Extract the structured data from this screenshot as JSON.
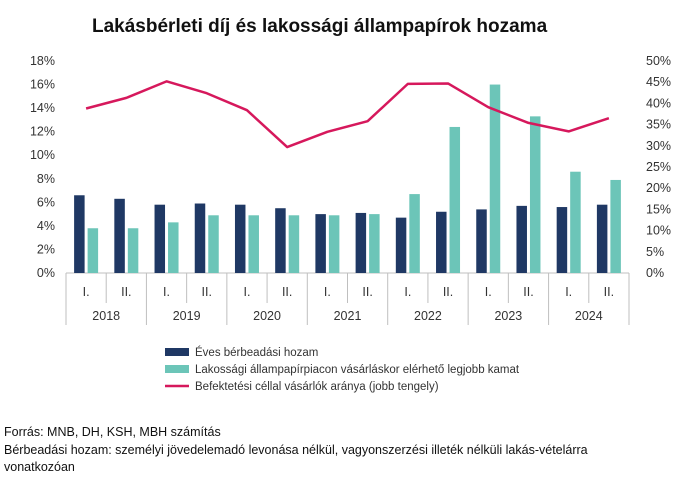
{
  "chart_data": {
    "type": "bar",
    "title": "Lakásbérleti díj és lakossági állampapírok hozama",
    "years": [
      "2018",
      "2019",
      "2020",
      "2021",
      "2022",
      "2023",
      "2024"
    ],
    "categories": [
      "I.",
      "II.",
      "I.",
      "II.",
      "I.",
      "II.",
      "I.",
      "II.",
      "I.",
      "II.",
      "I.",
      "II.",
      "I.",
      "II."
    ],
    "y_left": {
      "ticks": [
        "0%",
        "2%",
        "4%",
        "6%",
        "8%",
        "10%",
        "12%",
        "14%",
        "16%",
        "18%"
      ],
      "range": [
        0,
        18
      ]
    },
    "y_right": {
      "ticks": [
        "0%",
        "5%",
        "10%",
        "15%",
        "20%",
        "25%",
        "30%",
        "35%",
        "40%",
        "45%",
        "50%"
      ],
      "range": [
        0,
        50
      ]
    },
    "series": [
      {
        "name": "Éves bérbeadási hozam",
        "type": "bar",
        "axis": "left",
        "color": "#1f3864",
        "values": [
          6.6,
          6.3,
          5.8,
          5.9,
          5.8,
          5.5,
          5.0,
          5.1,
          4.7,
          5.2,
          5.4,
          5.7,
          5.6,
          5.8
        ]
      },
      {
        "name": "Lakossági állampapírpiacon vásárláskor elérhető legjobb kamat",
        "type": "bar",
        "axis": "left",
        "color": "#6cc5b8",
        "values": [
          3.8,
          3.8,
          4.3,
          4.9,
          4.9,
          4.9,
          4.9,
          5.0,
          6.7,
          12.4,
          16.0,
          13.3,
          8.6,
          7.9
        ]
      },
      {
        "name": "Befektetési céllal vásárlók aránya (jobb tengely)",
        "type": "line",
        "axis": "right",
        "color": "#d6185c",
        "values": [
          38.8,
          41.3,
          45.2,
          42.4,
          38.4,
          29.7,
          33.3,
          35.8,
          44.6,
          44.7,
          39.1,
          35.4,
          33.4,
          36.5
        ]
      }
    ],
    "legend_position": "bottom",
    "grid": false
  },
  "notes": {
    "source": "Forrás: MNB, DH, KSH, MBH számítás",
    "definition": "Bérbeadási hozam: személyi jövedelemadó levonása nélkül, vagyonszerzési illeték nélküli lakás-vételárra vonatkozóan"
  }
}
